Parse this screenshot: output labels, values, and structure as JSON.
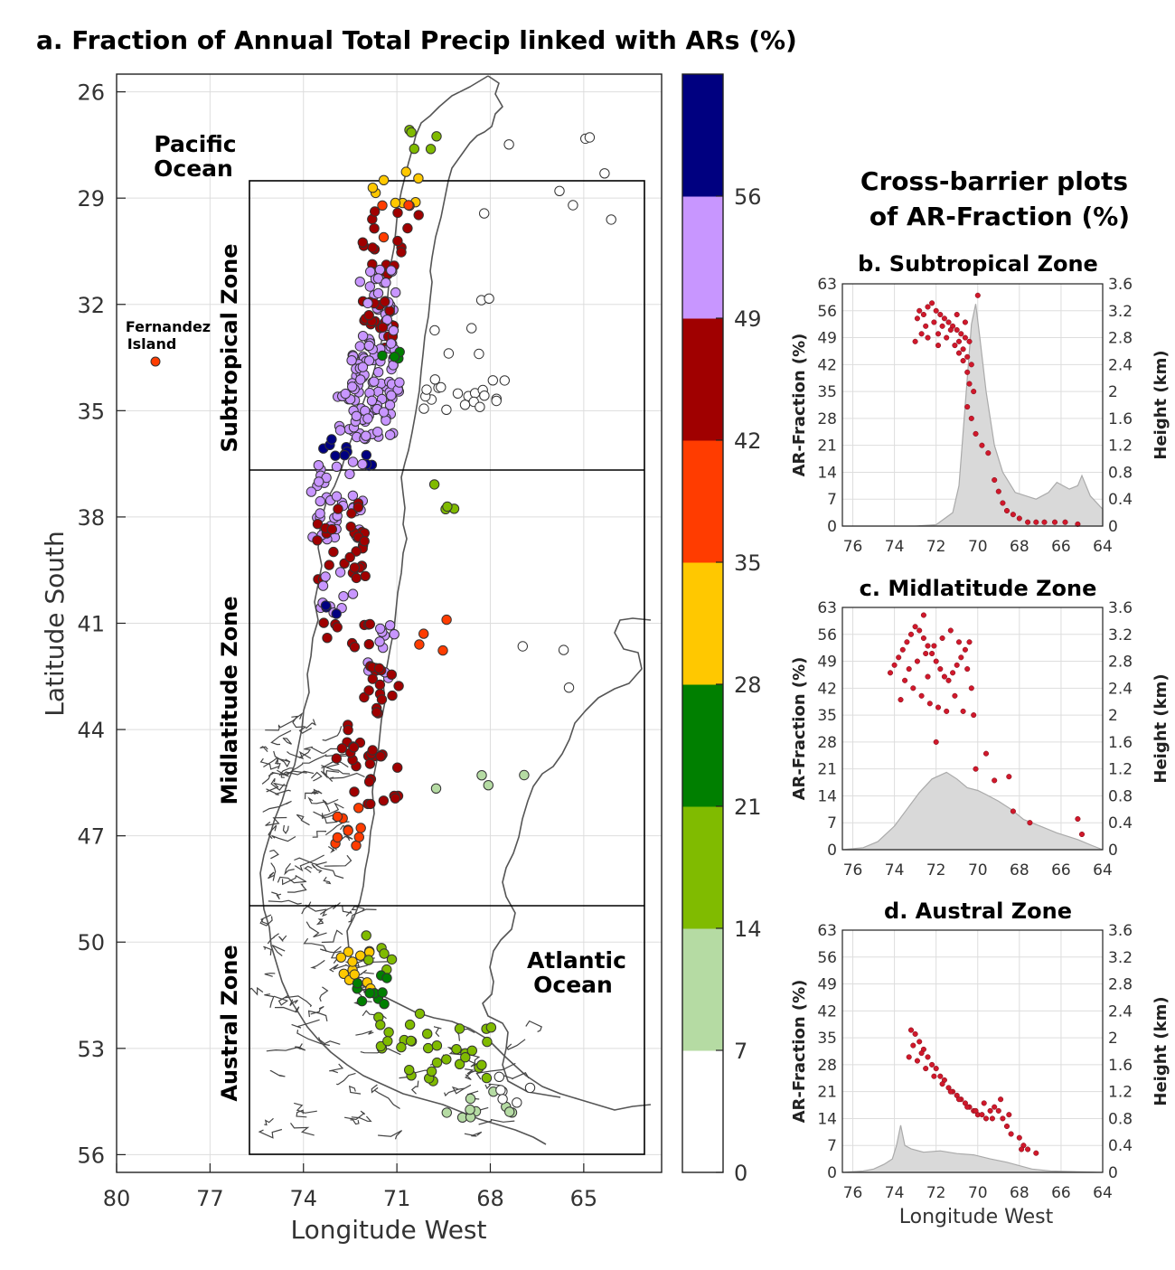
{
  "main_title": "a. Fraction of Annual Total Precip linked with ARs (%)",
  "map": {
    "xlabel": "Longitude West",
    "ylabel": "Latitude South",
    "xticks": [
      80,
      77,
      74,
      71,
      68,
      65
    ],
    "yticks": [
      26,
      29,
      32,
      35,
      38,
      41,
      44,
      47,
      50,
      53,
      56
    ],
    "xlim": [
      80,
      62.5
    ],
    "ylim": [
      25.5,
      56.5
    ],
    "zones": [
      "Subtropical Zone",
      "Midlatitude Zone",
      "Austral Zone"
    ],
    "ocean_labels": {
      "pacific": [
        "Pacific",
        "Ocean"
      ],
      "atlantic": [
        "Atlantic",
        "Ocean"
      ],
      "island": [
        "Fernandez",
        "Island"
      ]
    }
  },
  "colorbar": {
    "ticks": [
      0,
      7,
      14,
      21,
      28,
      35,
      42,
      49,
      56
    ],
    "colors": [
      "#ffffff",
      "#b5dba3",
      "#80bb00",
      "#007f00",
      "#ffc800",
      "#ff3c00",
      "#a00000",
      "#c896ff",
      "#000080"
    ]
  },
  "right_title": [
    "Cross-barrier plots",
    "of AR-Fraction (%)"
  ],
  "panels": [
    {
      "title": "b. Subtropical Zone"
    },
    {
      "title": "c. Midlatitude Zone"
    },
    {
      "title": "d. Austral Zone"
    }
  ],
  "panel_axes": {
    "ylabel_left": "AR-Fraction (%)",
    "ylabel_right": "Height (km)",
    "xlabel": "Longitude West",
    "xticks": [
      76,
      74,
      72,
      70,
      68,
      66,
      64
    ],
    "yticks_left": [
      0,
      7,
      14,
      21,
      28,
      35,
      42,
      49,
      56,
      63
    ],
    "yticks_right": [
      "0",
      "0.4",
      "0.8",
      "1.2",
      "1.6",
      "2",
      "2.4",
      "2.8",
      "3.2",
      "3.6"
    ]
  },
  "chart_data": [
    {
      "type": "scatter",
      "title": "b. Subtropical Zone",
      "xlabel": "Longitude West",
      "ylabel": "AR-Fraction (%)",
      "y2label": "Height (km)",
      "xlim": [
        76.5,
        64
      ],
      "ylim": [
        0,
        63
      ],
      "y2lim": [
        0,
        3.6
      ],
      "points": [
        [
          72.9,
          54
        ],
        [
          72.6,
          55
        ],
        [
          72.4,
          57
        ],
        [
          72.2,
          58
        ],
        [
          72.0,
          56
        ],
        [
          71.8,
          55
        ],
        [
          71.6,
          54
        ],
        [
          71.4,
          53
        ],
        [
          71.2,
          52
        ],
        [
          71.0,
          51
        ],
        [
          70.8,
          50
        ],
        [
          70.6,
          49
        ],
        [
          70.4,
          48
        ],
        [
          72.5,
          52
        ],
        [
          72.1,
          53
        ],
        [
          71.7,
          52
        ],
        [
          71.3,
          51
        ],
        [
          70.9,
          48
        ],
        [
          70.7,
          46
        ],
        [
          70.5,
          44
        ],
        [
          70.3,
          42
        ],
        [
          70.5,
          40
        ],
        [
          70.4,
          37
        ],
        [
          70.2,
          35
        ],
        [
          70.5,
          31
        ],
        [
          70.3,
          28
        ],
        [
          70.1,
          24
        ],
        [
          69.8,
          21
        ],
        [
          69.5,
          19
        ],
        [
          69.2,
          12
        ],
        [
          69.0,
          9
        ],
        [
          68.8,
          6
        ],
        [
          68.6,
          4
        ],
        [
          68.3,
          3
        ],
        [
          68.0,
          2
        ],
        [
          67.6,
          1
        ],
        [
          67.2,
          1
        ],
        [
          66.8,
          1
        ],
        [
          66.3,
          1
        ],
        [
          65.8,
          1
        ],
        [
          65.2,
          0.5
        ],
        [
          73.0,
          48
        ],
        [
          72.7,
          50
        ],
        [
          71.9,
          50
        ],
        [
          71.5,
          49
        ],
        [
          71.1,
          47
        ],
        [
          70.9,
          45
        ],
        [
          70.7,
          43
        ],
        [
          71.9,
          47
        ],
        [
          72.4,
          49
        ],
        [
          70.0,
          60
        ],
        [
          72.8,
          56
        ],
        [
          71.0,
          55
        ],
        [
          70.6,
          53
        ]
      ],
      "terrain": [
        [
          76.5,
          0
        ],
        [
          73,
          0
        ],
        [
          72,
          0.02
        ],
        [
          71.2,
          0.2
        ],
        [
          70.9,
          0.6
        ],
        [
          70.7,
          1.4
        ],
        [
          70.5,
          2.2
        ],
        [
          70.3,
          3.0
        ],
        [
          70.1,
          3.3
        ],
        [
          69.9,
          2.8
        ],
        [
          69.6,
          2.0
        ],
        [
          69.2,
          1.2
        ],
        [
          68.8,
          0.8
        ],
        [
          68.2,
          0.5
        ],
        [
          67.2,
          0.4
        ],
        [
          66.6,
          0.5
        ],
        [
          66.2,
          0.65
        ],
        [
          65.6,
          0.55
        ],
        [
          65.2,
          0.6
        ],
        [
          65.0,
          0.75
        ],
        [
          64.6,
          0.45
        ],
        [
          64,
          0.25
        ]
      ]
    },
    {
      "type": "scatter",
      "title": "c. Midlatitude Zone",
      "xlabel": "Longitude West",
      "ylabel": "AR-Fraction (%)",
      "y2label": "Height (km)",
      "xlim": [
        76.5,
        64
      ],
      "ylim": [
        0,
        63
      ],
      "y2lim": [
        0,
        3.6
      ],
      "points": [
        [
          74.2,
          46
        ],
        [
          74.0,
          48
        ],
        [
          73.8,
          50
        ],
        [
          73.6,
          52
        ],
        [
          73.4,
          54
        ],
        [
          73.2,
          56
        ],
        [
          73.0,
          58
        ],
        [
          72.8,
          57
        ],
        [
          72.6,
          55
        ],
        [
          72.4,
          53
        ],
        [
          72.2,
          51
        ],
        [
          72.0,
          49
        ],
        [
          71.8,
          47
        ],
        [
          71.6,
          45
        ],
        [
          71.4,
          44
        ],
        [
          71.2,
          46
        ],
        [
          71.0,
          48
        ],
        [
          70.8,
          50
        ],
        [
          70.6,
          52
        ],
        [
          70.4,
          54
        ],
        [
          73.5,
          44
        ],
        [
          73.1,
          42
        ],
        [
          72.7,
          40
        ],
        [
          72.3,
          38
        ],
        [
          71.9,
          37
        ],
        [
          71.5,
          36
        ],
        [
          73.3,
          47
        ],
        [
          72.9,
          49
        ],
        [
          72.5,
          51
        ],
        [
          72.1,
          53
        ],
        [
          71.7,
          55
        ],
        [
          71.3,
          57
        ],
        [
          70.9,
          54
        ],
        [
          70.5,
          47
        ],
        [
          70.3,
          42
        ],
        [
          70.2,
          35
        ],
        [
          72.0,
          28
        ],
        [
          70.1,
          21
        ],
        [
          69.6,
          25
        ],
        [
          69.2,
          18
        ],
        [
          68.5,
          19
        ],
        [
          68.3,
          10
        ],
        [
          67.5,
          7
        ],
        [
          65.2,
          8
        ],
        [
          65.0,
          4
        ],
        [
          72.6,
          61
        ],
        [
          73.7,
          39
        ],
        [
          71.1,
          40
        ],
        [
          70.7,
          36
        ],
        [
          72.4,
          45
        ]
      ],
      "terrain": [
        [
          76.5,
          0
        ],
        [
          75.5,
          0.03
        ],
        [
          74.8,
          0.12
        ],
        [
          74.0,
          0.35
        ],
        [
          73.4,
          0.6
        ],
        [
          72.8,
          0.85
        ],
        [
          72.2,
          1.05
        ],
        [
          71.5,
          1.15
        ],
        [
          71.0,
          1.05
        ],
        [
          70.5,
          0.92
        ],
        [
          70.0,
          0.88
        ],
        [
          69.6,
          0.82
        ],
        [
          69.0,
          0.72
        ],
        [
          68.4,
          0.6
        ],
        [
          67.8,
          0.45
        ],
        [
          67.0,
          0.35
        ],
        [
          66.2,
          0.25
        ],
        [
          65.2,
          0.15
        ],
        [
          64.5,
          0.06
        ],
        [
          64,
          0
        ]
      ]
    },
    {
      "type": "scatter",
      "title": "d. Austral Zone",
      "xlabel": "Longitude West",
      "ylabel": "AR-Fraction (%)",
      "y2label": "Height (km)",
      "xlim": [
        76.5,
        64
      ],
      "ylim": [
        0,
        63
      ],
      "y2lim": [
        0,
        3.6
      ],
      "points": [
        [
          73.2,
          37
        ],
        [
          73.0,
          36
        ],
        [
          72.8,
          34
        ],
        [
          72.6,
          32
        ],
        [
          72.4,
          30
        ],
        [
          72.2,
          28
        ],
        [
          72.0,
          27
        ],
        [
          71.8,
          25
        ],
        [
          71.6,
          24
        ],
        [
          71.4,
          22
        ],
        [
          71.2,
          21
        ],
        [
          71.0,
          20
        ],
        [
          70.8,
          19
        ],
        [
          70.6,
          18
        ],
        [
          70.4,
          17
        ],
        [
          70.2,
          16
        ],
        [
          70.0,
          15
        ],
        [
          69.8,
          15
        ],
        [
          69.6,
          14
        ],
        [
          69.4,
          16
        ],
        [
          69.2,
          17
        ],
        [
          69.0,
          16
        ],
        [
          68.8,
          14
        ],
        [
          68.6,
          12
        ],
        [
          68.4,
          10
        ],
        [
          68.0,
          9
        ],
        [
          67.8,
          7
        ],
        [
          67.6,
          6
        ],
        [
          67.2,
          5
        ],
        [
          73.3,
          30
        ],
        [
          72.9,
          29
        ],
        [
          72.5,
          27
        ],
        [
          72.1,
          25
        ],
        [
          71.7,
          23
        ],
        [
          71.3,
          21
        ],
        [
          70.9,
          19
        ],
        [
          70.5,
          17
        ],
        [
          70.1,
          16
        ],
        [
          69.7,
          18
        ],
        [
          69.3,
          14
        ],
        [
          73.1,
          33
        ],
        [
          72.7,
          31
        ],
        [
          68.9,
          19
        ],
        [
          68.5,
          15
        ],
        [
          67.9,
          6
        ]
      ],
      "terrain": [
        [
          76.5,
          0
        ],
        [
          75.5,
          0.02
        ],
        [
          75,
          0.05
        ],
        [
          74.5,
          0.12
        ],
        [
          74.1,
          0.2
        ],
        [
          73.9,
          0.4
        ],
        [
          73.7,
          0.7
        ],
        [
          73.5,
          0.4
        ],
        [
          73.2,
          0.35
        ],
        [
          72.6,
          0.3
        ],
        [
          71.8,
          0.32
        ],
        [
          71,
          0.28
        ],
        [
          70.2,
          0.26
        ],
        [
          69.4,
          0.2
        ],
        [
          68.6,
          0.15
        ],
        [
          68,
          0.1
        ],
        [
          67.4,
          0.05
        ],
        [
          66.5,
          0.02
        ],
        [
          64,
          0
        ]
      ]
    }
  ]
}
